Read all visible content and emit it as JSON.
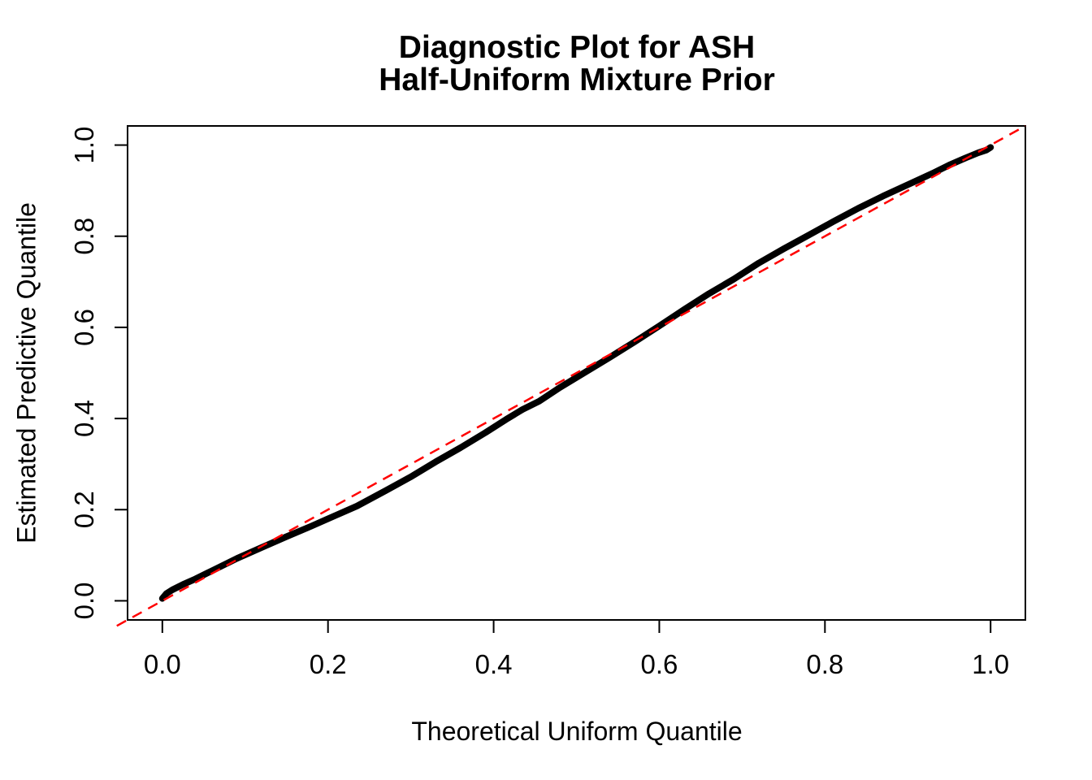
{
  "figure": {
    "title_line1": "Diagnostic Plot for ASH",
    "title_line2": "Half-Uniform Mixture Prior",
    "xlabel": "Theoretical Uniform Quantile",
    "ylabel": "Estimated Predictive Quantile"
  },
  "chart_data": {
    "type": "scatter",
    "title": "Diagnostic Plot for ASH\nHalf-Uniform Mixture Prior",
    "xlabel": "Theoretical Uniform Quantile",
    "ylabel": "Estimated Predictive Quantile",
    "xlim": [
      -0.042,
      1.042
    ],
    "ylim": [
      -0.042,
      1.042
    ],
    "grid": false,
    "legend": null,
    "axis_color": "#000000",
    "xticks": {
      "values": [
        0.0,
        0.2,
        0.4,
        0.6,
        0.8,
        1.0
      ],
      "labels": [
        "0.0",
        "0.2",
        "0.4",
        "0.6",
        "0.8",
        "1.0"
      ]
    },
    "yticks": {
      "values": [
        0.0,
        0.2,
        0.4,
        0.6,
        0.8,
        1.0
      ],
      "labels": [
        "0.0",
        "0.2",
        "0.4",
        "0.6",
        "0.8",
        "1.0"
      ]
    },
    "series": [
      {
        "name": "estimated-predictive-quantiles",
        "type": "point-band",
        "color": "#000000",
        "band_width": 8,
        "points": [
          [
            0.0,
            0.005
          ],
          [
            0.005,
            0.016
          ],
          [
            0.012,
            0.024
          ],
          [
            0.025,
            0.036
          ],
          [
            0.04,
            0.048
          ],
          [
            0.06,
            0.066
          ],
          [
            0.09,
            0.093
          ],
          [
            0.12,
            0.117
          ],
          [
            0.15,
            0.141
          ],
          [
            0.18,
            0.164
          ],
          [
            0.21,
            0.188
          ],
          [
            0.235,
            0.208
          ],
          [
            0.27,
            0.242
          ],
          [
            0.3,
            0.272
          ],
          [
            0.33,
            0.305
          ],
          [
            0.36,
            0.336
          ],
          [
            0.39,
            0.369
          ],
          [
            0.415,
            0.398
          ],
          [
            0.435,
            0.42
          ],
          [
            0.455,
            0.438
          ],
          [
            0.48,
            0.468
          ],
          [
            0.51,
            0.501
          ],
          [
            0.54,
            0.534
          ],
          [
            0.57,
            0.568
          ],
          [
            0.6,
            0.603
          ],
          [
            0.63,
            0.639
          ],
          [
            0.66,
            0.674
          ],
          [
            0.69,
            0.706
          ],
          [
            0.72,
            0.741
          ],
          [
            0.75,
            0.772
          ],
          [
            0.78,
            0.802
          ],
          [
            0.81,
            0.832
          ],
          [
            0.84,
            0.861
          ],
          [
            0.87,
            0.888
          ],
          [
            0.9,
            0.913
          ],
          [
            0.93,
            0.938
          ],
          [
            0.95,
            0.956
          ],
          [
            0.97,
            0.972
          ],
          [
            0.985,
            0.983
          ],
          [
            0.995,
            0.989
          ],
          [
            1.0,
            0.995
          ]
        ]
      },
      {
        "name": "reference-diagonal-y-equals-x",
        "type": "dashed-line",
        "color": "#FF0000",
        "line_width": 2.5,
        "dash": [
          13,
          9
        ],
        "from": [
          -0.055,
          -0.055
        ],
        "to": [
          1.042,
          1.042
        ]
      }
    ]
  }
}
